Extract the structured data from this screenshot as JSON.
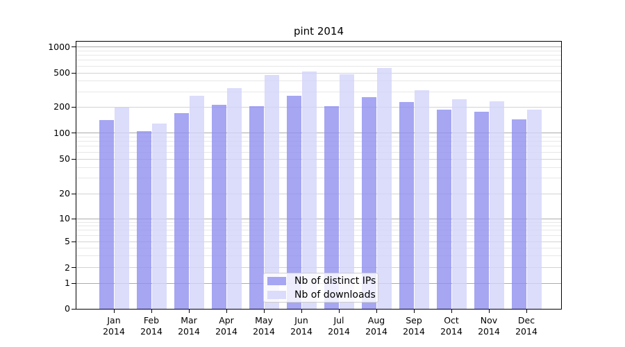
{
  "chart_data": {
    "type": "bar",
    "title": "pint 2014",
    "categories": [
      "Jan 2014",
      "Feb 2014",
      "Mar 2014",
      "Apr 2014",
      "May 2014",
      "Jun 2014",
      "Jul 2014",
      "Aug 2014",
      "Sep 2014",
      "Oct 2014",
      "Nov 2014",
      "Dec 2014"
    ],
    "series": [
      {
        "name": "Nb of distinct IPs",
        "color": "#a6a6f3",
        "values": [
          140,
          104,
          170,
          211,
          203,
          270,
          202,
          262,
          226,
          186,
          176,
          144
        ]
      },
      {
        "name": "Nb of downloads",
        "color": "#dbdbfb",
        "values": [
          195,
          128,
          268,
          330,
          470,
          515,
          480,
          565,
          312,
          246,
          232,
          187
        ]
      }
    ],
    "y_axis": {
      "scale": "symlog",
      "ylim": [
        0,
        1000
      ],
      "ticks": [
        0,
        1,
        2,
        5,
        10,
        20,
        50,
        100,
        200,
        500,
        1000
      ],
      "tick_labels": [
        "0",
        "1",
        "2",
        "5",
        "10",
        "20",
        "50",
        "100",
        "200",
        "500",
        "1000"
      ]
    },
    "x_axis": {
      "tick_label_line2": "2014"
    },
    "grid": true,
    "legend_position": "lower center",
    "bar_alpha": 0.8,
    "bar_fill_rgba": [
      "rgba(144,144,240,0.8)",
      "rgba(211,211,250,0.8)"
    ]
  }
}
